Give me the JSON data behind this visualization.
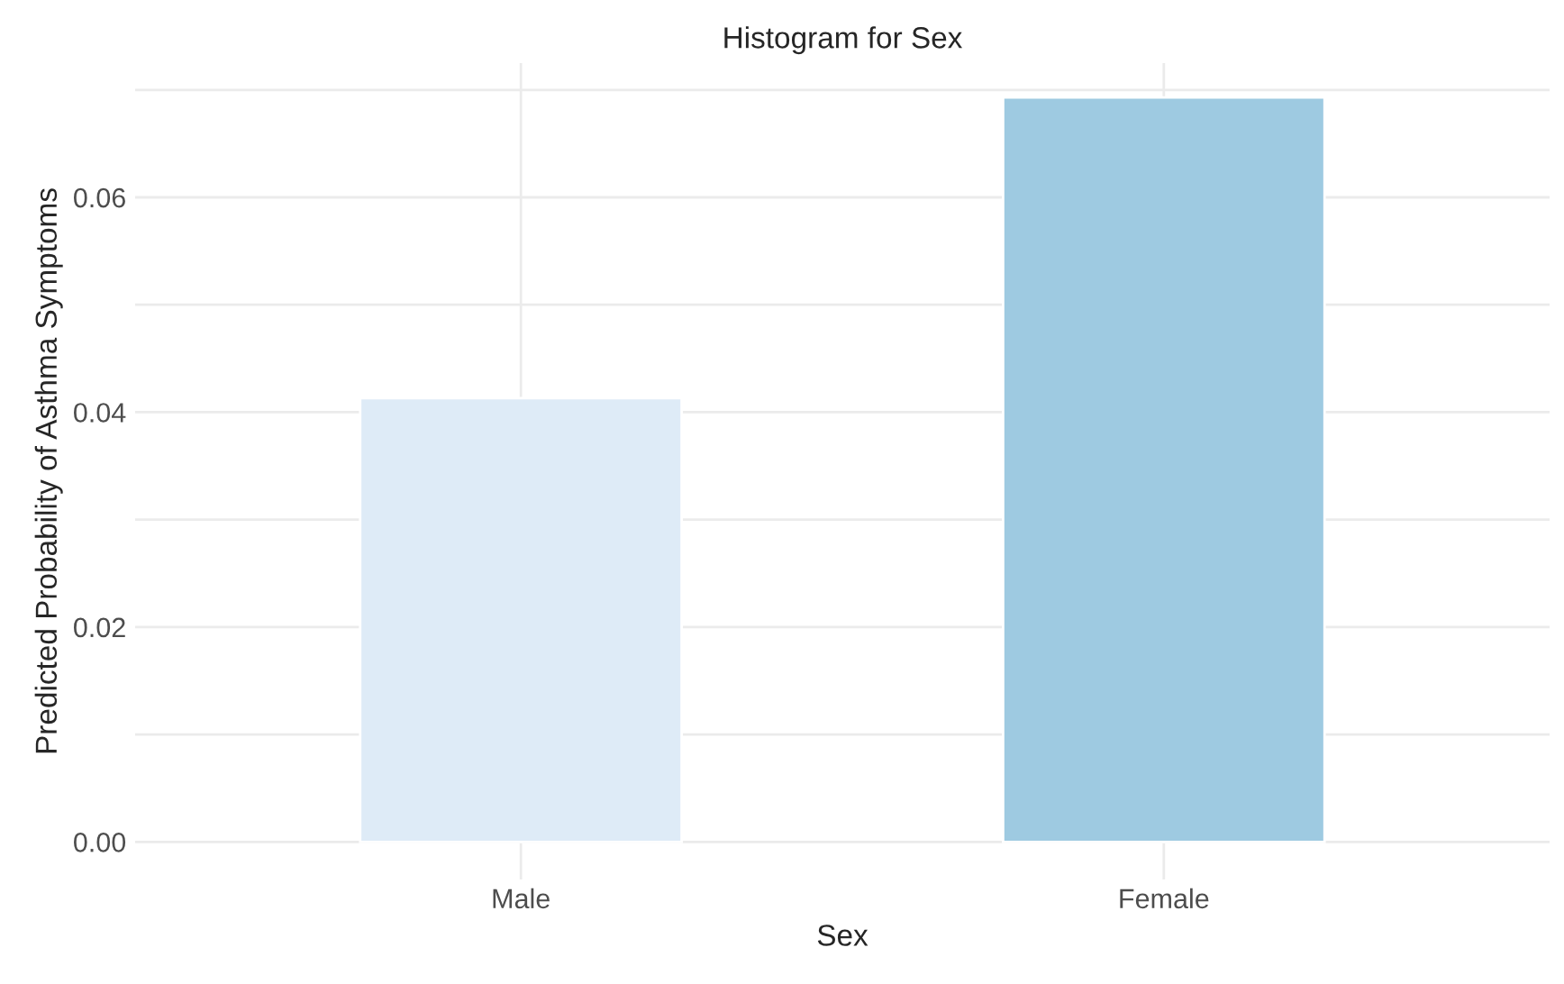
{
  "chart_data": {
    "type": "bar",
    "title": "Histogram for Sex",
    "xlabel": "Sex",
    "ylabel": "Predicted Probability of Asthma Symptoms",
    "categories": [
      "Male",
      "Female"
    ],
    "values": [
      0.0413,
      0.0693
    ],
    "colors": [
      "#deebf7",
      "#9ecae1"
    ],
    "ylim": [
      -0.0035,
      0.0725
    ],
    "yticks": [
      "0.00",
      {
        "value": 0.01,
        "label": null
      },
      {
        "value": 0.02,
        "label": "0.02"
      },
      {
        "value": 0.03,
        "label": null
      },
      {
        "value": 0.04,
        "label": "0.04"
      },
      {
        "value": 0.05,
        "label": null
      },
      {
        "value": 0.06,
        "label": "0.06"
      },
      {
        "value": 0.07,
        "label": null
      }
    ],
    "grid": true
  }
}
